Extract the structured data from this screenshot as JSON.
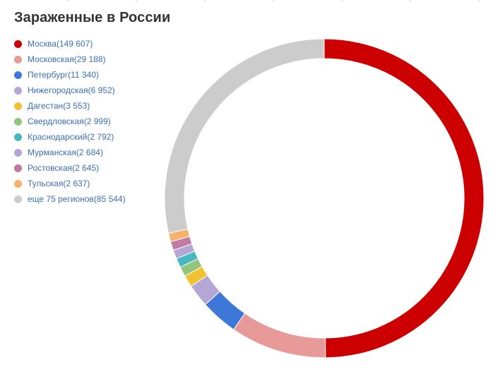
{
  "title": "Зараженные в России",
  "chart_data": {
    "type": "pie",
    "title": "Зараженные в России",
    "legend": "left",
    "donut": true,
    "slices": [
      {
        "label": "Москва",
        "value": 149607,
        "value_text": "149 607",
        "color": "#cc0000"
      },
      {
        "label": "Московская",
        "value": 29188,
        "value_text": "29 188",
        "color": "#e89a99"
      },
      {
        "label": "Петербург",
        "value": 11340,
        "value_text": "11 340",
        "color": "#3d78d8"
      },
      {
        "label": "Нижегородская",
        "value": 6952,
        "value_text": "6 952",
        "color": "#b4a7d6"
      },
      {
        "label": "Дагестан",
        "value": 3553,
        "value_text": "3 553",
        "color": "#f1c232"
      },
      {
        "label": "Свердловская",
        "value": 2999,
        "value_text": "2 999",
        "color": "#93c47d"
      },
      {
        "label": "Краснодарский",
        "value": 2792,
        "value_text": "2 792",
        "color": "#45b8c2"
      },
      {
        "label": "Мурманская",
        "value": 2684,
        "value_text": "2 684",
        "color": "#b4a7d6"
      },
      {
        "label": "Ростовская",
        "value": 2645,
        "value_text": "2 645",
        "color": "#c27ba0"
      },
      {
        "label": "Тульская",
        "value": 2637,
        "value_text": "2 637",
        "color": "#f6b26b"
      },
      {
        "label": "еще 75 регионов",
        "value": 85544,
        "value_text": "85 544",
        "color": "#cccccc"
      }
    ]
  }
}
